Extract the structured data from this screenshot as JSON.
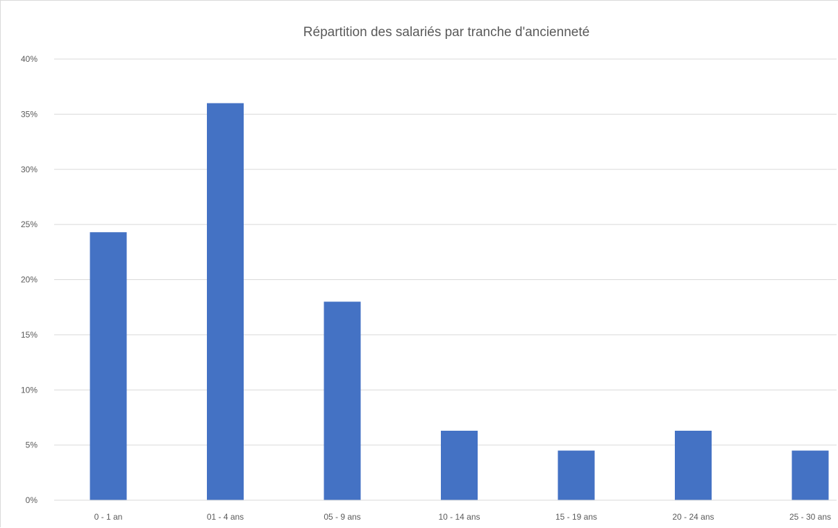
{
  "chart_data": {
    "type": "bar",
    "title": "Répartition des salariés par tranche d'ancienneté",
    "xlabel": "",
    "ylabel": "",
    "categories": [
      "0 - 1 an",
      "01 - 4 ans",
      "05 - 9 ans",
      "10 - 14 ans",
      "15 - 19 ans",
      "20 - 24 ans",
      "25 - 30 ans"
    ],
    "values": [
      0.243,
      0.36,
      0.18,
      0.063,
      0.045,
      0.063,
      0.045
    ],
    "ylim": [
      0,
      0.4
    ],
    "yticks": [
      0,
      0.05,
      0.1,
      0.15,
      0.2,
      0.25,
      0.3,
      0.35,
      0.4
    ],
    "ytick_labels": [
      "0%",
      "5%",
      "10%",
      "15%",
      "20%",
      "25%",
      "30%",
      "35%",
      "40%"
    ],
    "grid": true,
    "legend": "none",
    "bar_color": "#4472c4"
  }
}
